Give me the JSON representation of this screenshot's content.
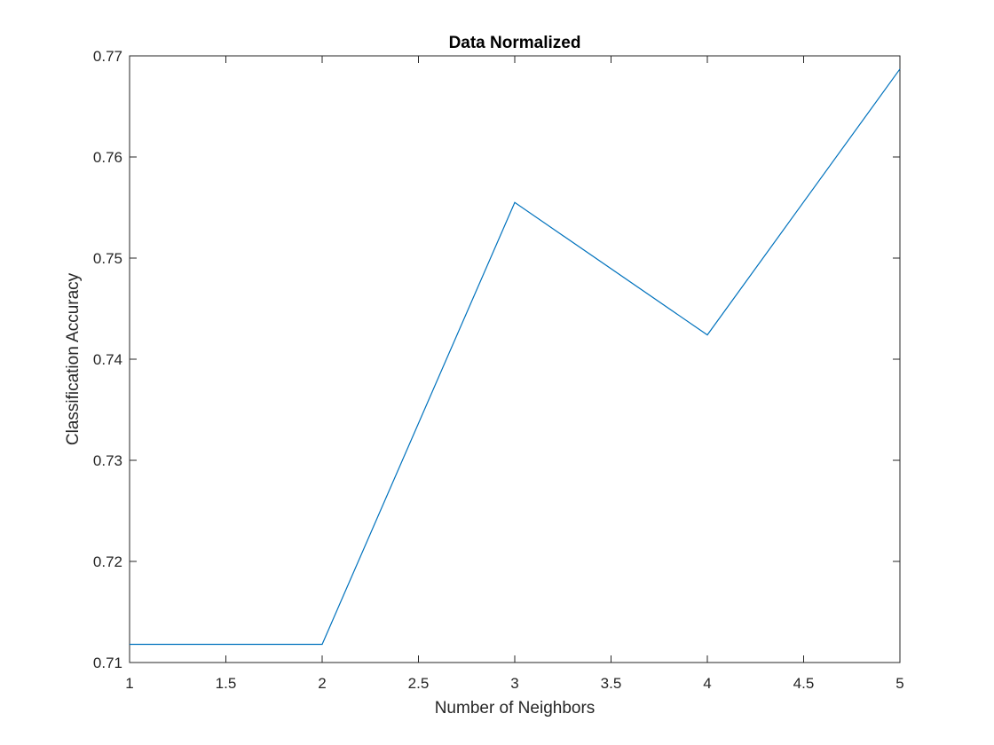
{
  "chart_data": {
    "type": "line",
    "title": "Data Normalized",
    "xlabel": "Number of Neighbors",
    "ylabel": "Classification Accuracy",
    "xlim": [
      1,
      5
    ],
    "ylim": [
      0.71,
      0.77
    ],
    "xticks": [
      1,
      1.5,
      2,
      2.5,
      3,
      3.5,
      4,
      4.5,
      5
    ],
    "xtick_labels": [
      "1",
      "1.5",
      "2",
      "2.5",
      "3",
      "3.5",
      "4",
      "4.5",
      "5"
    ],
    "yticks": [
      0.71,
      0.72,
      0.73,
      0.74,
      0.75,
      0.76,
      0.77
    ],
    "ytick_labels": [
      "0.71",
      "0.72",
      "0.73",
      "0.74",
      "0.75",
      "0.76",
      "0.77"
    ],
    "grid": false,
    "series": [
      {
        "x": [
          1,
          2,
          3,
          4,
          5
        ],
        "values": [
          0.7118,
          0.7118,
          0.7555,
          0.7424,
          0.7687
        ],
        "color": "#0072BD"
      }
    ]
  }
}
